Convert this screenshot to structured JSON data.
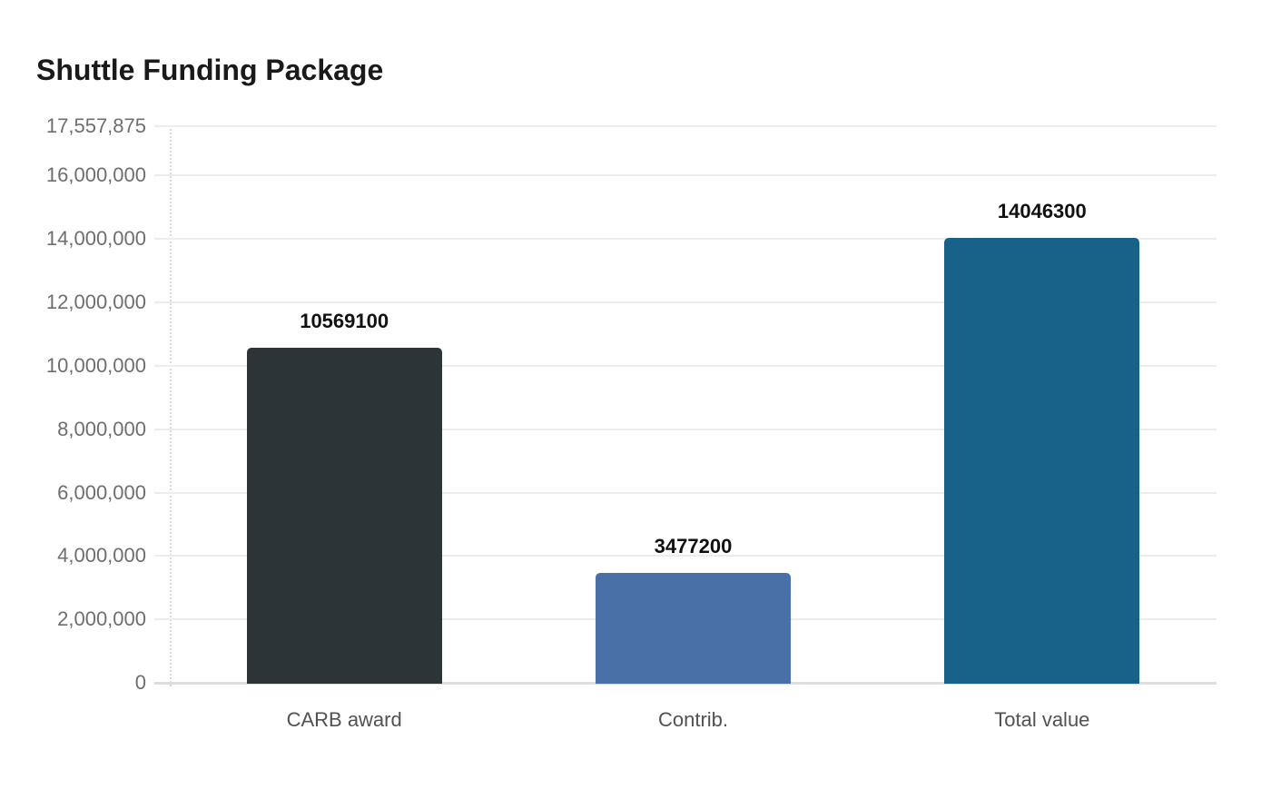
{
  "page": {
    "background": "#ffffff"
  },
  "header": {
    "title": "Shuttle Funding Package"
  },
  "chart_data": {
    "type": "bar",
    "title": "Shuttle Funding Package",
    "categories": [
      "CARB award",
      "Contrib.",
      "Total value"
    ],
    "values": [
      10569100,
      3477200,
      14046300
    ],
    "value_labels": [
      "10569100",
      "3477200",
      "14046300"
    ],
    "bar_colors": [
      "#2c3438",
      "#4a70a8",
      "#186189"
    ],
    "xlabel": "",
    "ylabel": "",
    "ylim": [
      0,
      17557875
    ],
    "y_ticks": [
      {
        "value": 0,
        "label": "0"
      },
      {
        "value": 2000000,
        "label": "2,000,000"
      },
      {
        "value": 4000000,
        "label": "4,000,000"
      },
      {
        "value": 6000000,
        "label": "6,000,000"
      },
      {
        "value": 8000000,
        "label": "8,000,000"
      },
      {
        "value": 10000000,
        "label": "10,000,000"
      },
      {
        "value": 12000000,
        "label": "12,000,000"
      },
      {
        "value": 14000000,
        "label": "14,000,000"
      },
      {
        "value": 16000000,
        "label": "16,000,000"
      },
      {
        "value": 17557875,
        "label": "17,557,875"
      }
    ],
    "grid": "horizontal",
    "legend": "none"
  },
  "style": {
    "title_color": "#1a1a1a",
    "grid_color": "#ececec",
    "zero_line_color": "#dedede",
    "axis_line_color": "#d8d8d8",
    "tick_label_color": "#6e6e6e",
    "category_label_color": "#525252",
    "value_label_color": "#111111"
  }
}
